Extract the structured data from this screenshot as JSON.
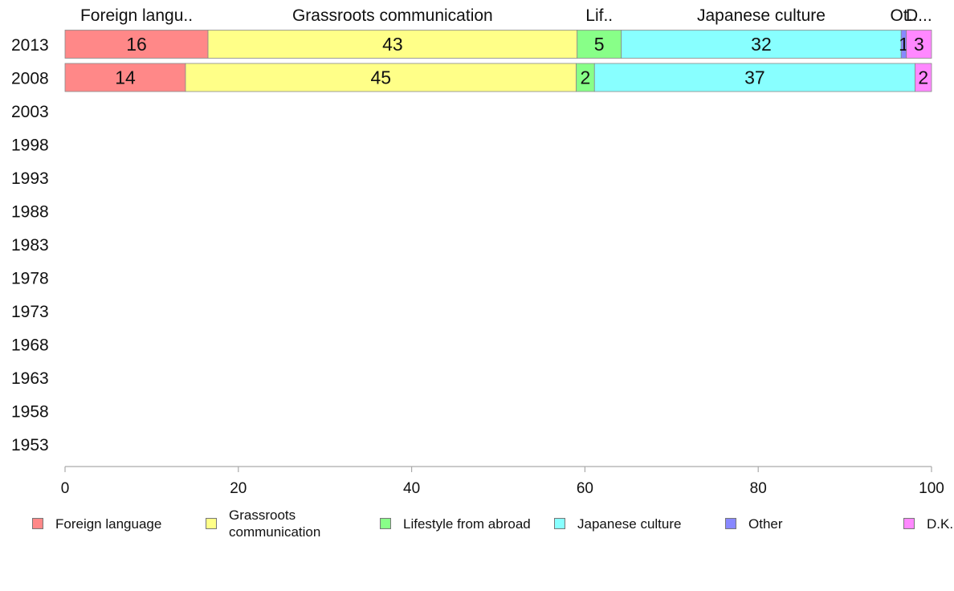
{
  "chart_data": {
    "type": "bar",
    "orientation": "horizontal",
    "stacked": true,
    "categories": [
      "2013",
      "2008",
      "2003",
      "1998",
      "1993",
      "1988",
      "1983",
      "1978",
      "1973",
      "1968",
      "1963",
      "1958",
      "1953"
    ],
    "series": [
      {
        "name": "Foreign language",
        "header": "Foreign langu..",
        "color": "#ff8888",
        "values": [
          16.5,
          13.9,
          null,
          null,
          null,
          null,
          null,
          null,
          null,
          null,
          null,
          null,
          null
        ],
        "labels": [
          "16",
          "14",
          "",
          "",
          "",
          "",
          "",
          "",
          "",
          "",
          "",
          "",
          ""
        ]
      },
      {
        "name": "Grassroots\ncommunication",
        "header": "Grassroots communication",
        "color": "#ffff88",
        "values": [
          42.6,
          45.1,
          null,
          null,
          null,
          null,
          null,
          null,
          null,
          null,
          null,
          null,
          null
        ],
        "labels": [
          "43",
          "45",
          "",
          "",
          "",
          "",
          "",
          "",
          "",
          "",
          "",
          "",
          ""
        ]
      },
      {
        "name": "Lifestyle from abroad",
        "header": "Lif..",
        "color": "#88ff88",
        "values": [
          5.1,
          2.1,
          null,
          null,
          null,
          null,
          null,
          null,
          null,
          null,
          null,
          null,
          null
        ],
        "labels": [
          "5",
          "2",
          "",
          "",
          "",
          "",
          "",
          "",
          "",
          "",
          "",
          "",
          ""
        ]
      },
      {
        "name": "Japanese culture",
        "header": "Japanese culture",
        "color": "#88ffff",
        "values": [
          32.3,
          37.0,
          null,
          null,
          null,
          null,
          null,
          null,
          null,
          null,
          null,
          null,
          null
        ],
        "labels": [
          "32",
          "37",
          "",
          "",
          "",
          "",
          "",
          "",
          "",
          "",
          "",
          "",
          ""
        ]
      },
      {
        "name": "Other",
        "header": "Ot..",
        "color": "#8888ff",
        "values": [
          0.6,
          0,
          null,
          null,
          null,
          null,
          null,
          null,
          null,
          null,
          null,
          null,
          null
        ],
        "labels": [
          "1",
          "",
          "",
          "",
          "",
          "",
          "",
          "",
          "",
          "",
          "",
          "",
          ""
        ]
      },
      {
        "name": "D.K.",
        "header": "D...",
        "color": "#ff88ff",
        "values": [
          2.9,
          1.9,
          null,
          null,
          null,
          null,
          null,
          null,
          null,
          null,
          null,
          null,
          null
        ],
        "labels": [
          "3",
          "2",
          "",
          "",
          "",
          "",
          "",
          "",
          "",
          "",
          "",
          "",
          ""
        ]
      }
    ],
    "xlim": [
      0,
      100
    ],
    "xticks": [
      0,
      20,
      40,
      60,
      80,
      100
    ],
    "title": "",
    "xlabel": "",
    "ylabel": "",
    "grid": false,
    "legend_position": "bottom"
  }
}
